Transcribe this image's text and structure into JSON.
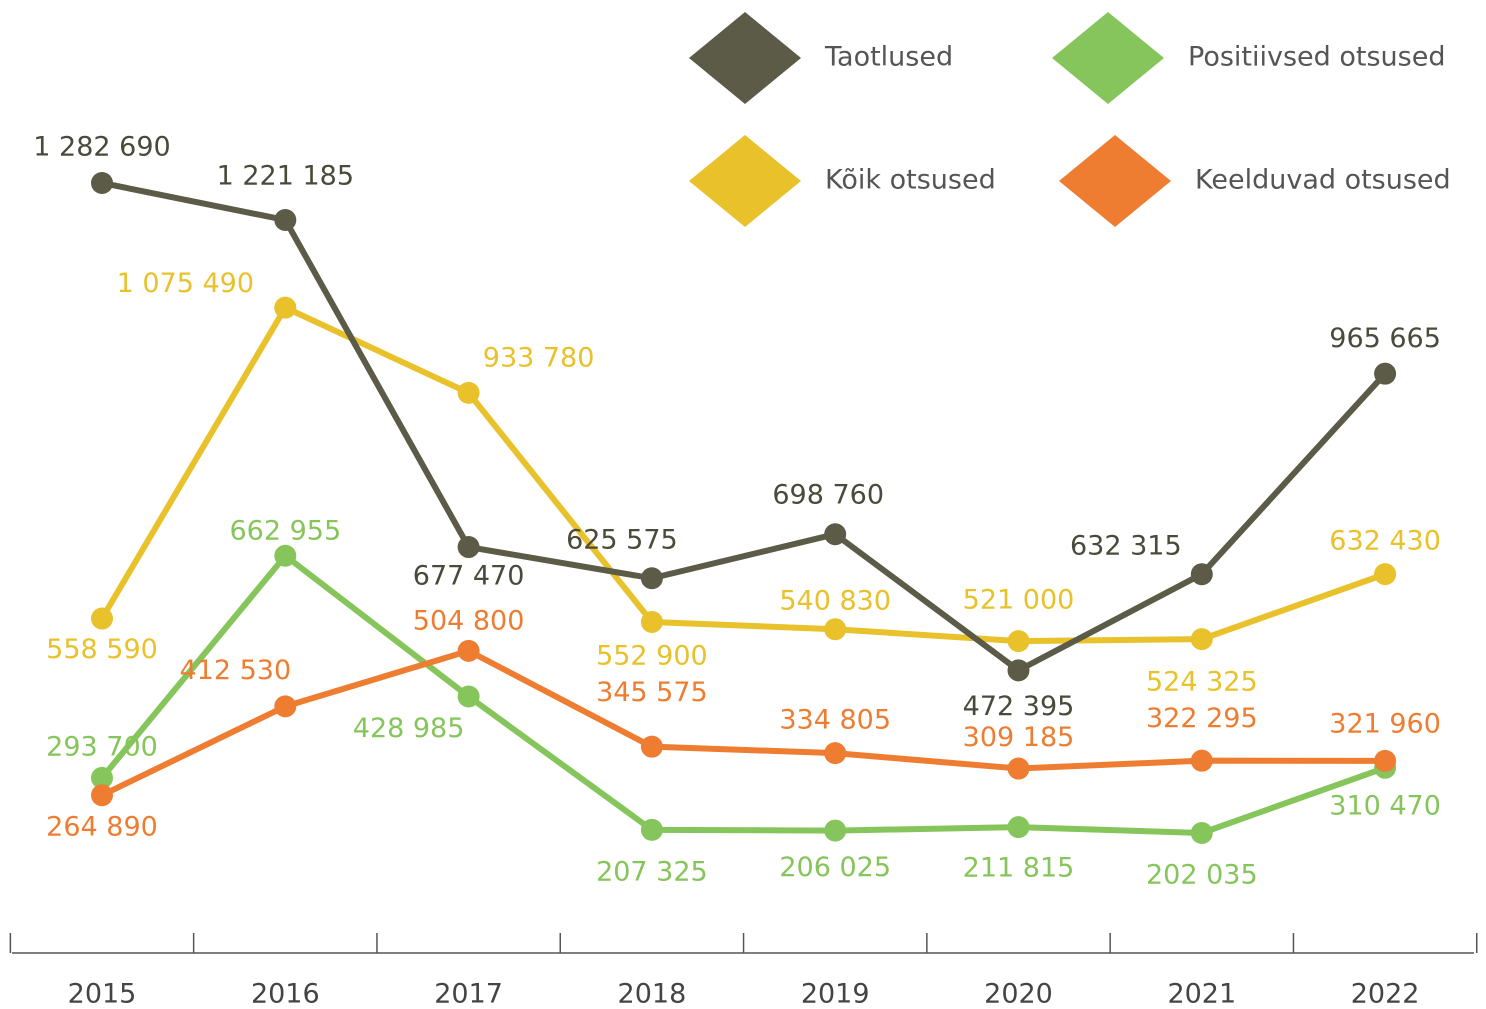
{
  "chart_data": {
    "type": "line",
    "categories": [
      "2015",
      "2016",
      "2017",
      "2018",
      "2019",
      "2020",
      "2021",
      "2022"
    ],
    "series": [
      {
        "name": "Taotlused",
        "color": "#5b5b47",
        "values": [
          1282690,
          1221185,
          677470,
          625575,
          698760,
          472395,
          632315,
          965665
        ],
        "value_labels": [
          "1 282 690",
          "1 221 185",
          "677 470",
          "625 575",
          "698 760",
          "472 395",
          "632 315",
          "965 665"
        ]
      },
      {
        "name": "Positiivsed otsused",
        "color": "#86c55b",
        "values": [
          293700,
          662955,
          428985,
          207325,
          206025,
          211815,
          202035,
          310470
        ],
        "value_labels": [
          "293 700",
          "662 955",
          "428 985",
          "207 325",
          "206 025",
          "211 815",
          "202 035",
          "310 470"
        ]
      },
      {
        "name": "Kõik otsused",
        "color": "#e9c12b",
        "values": [
          558590,
          1075490,
          933780,
          552900,
          540830,
          521000,
          524325,
          632430
        ],
        "value_labels": [
          "558 590",
          "1 075 490",
          "933 780",
          "552 900",
          "540 830",
          "521 000",
          "524 325",
          "632 430"
        ]
      },
      {
        "name": "Keelduvad otsused",
        "color": "#ee7d31",
        "values": [
          264890,
          412530,
          504800,
          345575,
          334805,
          309185,
          322295,
          321960
        ],
        "value_labels": [
          "264 890",
          "412 530",
          "504 800",
          "345 575",
          "334 805",
          "309 185",
          "322 295",
          "321 960"
        ]
      }
    ]
  }
}
